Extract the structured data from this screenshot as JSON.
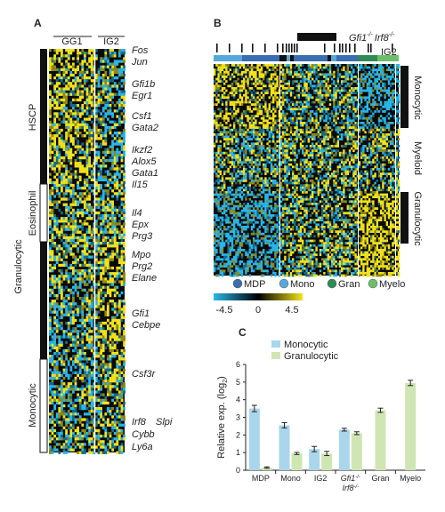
{
  "panels": {
    "a": {
      "letter": "A",
      "columns": [
        "GG1",
        "IG2"
      ],
      "groups": [
        "HSCP",
        "Eosinophil",
        "Granulocytic",
        "Monocytic"
      ],
      "genes": [
        "Fos",
        "Jun",
        "Gfi1b",
        "Egr1",
        "Csf1",
        "Gata2",
        "Ikzf2",
        "Alox5",
        "Gata1",
        "Il15",
        "Il4",
        "Epx",
        "Prg3",
        "Mpo",
        "Prg2",
        "Elane",
        "Gfi1",
        "Cebpe",
        "Csf3r",
        "Irf8",
        "Slpi",
        "Cybb",
        "Ly6a"
      ]
    },
    "b": {
      "letter": "B",
      "header_gfi": "Gfi1",
      "header_sup": "-/-",
      "header_irf": "Irf8",
      "header_col": "IG2",
      "row_groups": [
        "Monocytic",
        "Myeloid",
        "Granulocytic"
      ],
      "legend_items": [
        {
          "name": "MDP",
          "color": "#3a6eb0"
        },
        {
          "name": "Mono",
          "color": "#57a8d8"
        },
        {
          "name": "Gran",
          "color": "#2e8b57"
        },
        {
          "name": "Myelo",
          "color": "#6cbf6a"
        }
      ],
      "scale_ticks": [
        "-4.5",
        "0",
        "4.5"
      ],
      "scale_colors": {
        "low": "#29b6e8",
        "mid": "#000000",
        "high": "#f2e21b"
      }
    },
    "c": {
      "letter": "C",
      "legend": [
        "Monocytic",
        "Granulocytic"
      ],
      "gfi_label": "Gfi1",
      "irf_label": "Irf8",
      "ko_sup": "-/-"
    }
  },
  "chart_data": {
    "type": "bar",
    "title": "",
    "xlabel": "",
    "ylabel": "Relative exp. (log2)",
    "ylim": [
      0,
      6
    ],
    "yticks": [
      "0",
      "1",
      "2",
      "3",
      "4",
      "5",
      "6"
    ],
    "categories": [
      "MDP",
      "Mono",
      "IG2",
      "Gfi1-/- Irf8-/-",
      "Gran",
      "Myelo"
    ],
    "series": [
      {
        "name": "Monocytic",
        "color": "#a9d6ea",
        "values": [
          3.5,
          2.55,
          1.2,
          2.3,
          null,
          null
        ],
        "errors": [
          0.18,
          0.15,
          0.15,
          0.08,
          null,
          null
        ]
      },
      {
        "name": "Granulocytic",
        "color": "#cfe6b4",
        "values": [
          0.15,
          0.95,
          0.95,
          2.1,
          3.4,
          4.95
        ],
        "errors": [
          0.04,
          0.06,
          0.12,
          0.08,
          0.12,
          0.15
        ]
      }
    ]
  }
}
